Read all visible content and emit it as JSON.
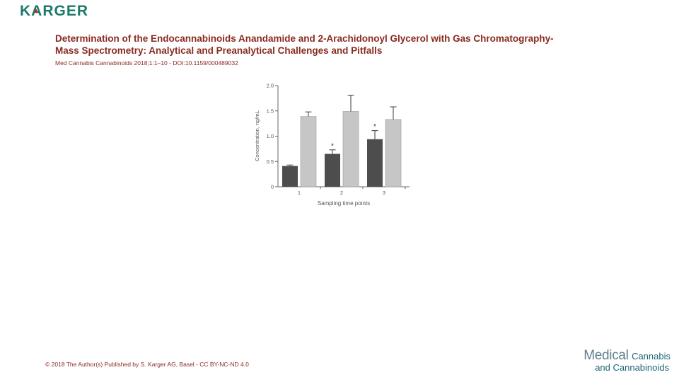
{
  "header": {
    "logo_text": "KARGER"
  },
  "title": {
    "line1": "Determination of the Endocannabinoids Anandamide and 2-Arachidonoyl Glycerol with Gas Chromatography-",
    "line2": "Mass Spectrometry: Analytical and Preanalytical Challenges and Pitfalls"
  },
  "citation": "Med Cannabis Cannabinoids 2018;1:1–10 - DOI:10.1159/000489032",
  "footer": {
    "copyright": "© 2018 The Author(s) Published by S. Karger AG, Basel - CC BY-NC-ND 4.0"
  },
  "journal_logo": {
    "word1": "Medical",
    "word2": "Cannabis",
    "line2": "and Cannabinoids",
    "color_word1": "#5e808d",
    "color_word2": "#1e6577"
  },
  "chart_data": {
    "type": "bar",
    "categories": [
      "1",
      "2",
      "3"
    ],
    "series": [
      {
        "name": "dark-bars",
        "values": [
          0.41,
          0.65,
          0.94
        ],
        "errors": [
          0.02,
          0.08,
          0.17
        ],
        "annotations": [
          "",
          "*",
          "*"
        ],
        "color": "#4d4d4d"
      },
      {
        "name": "light-bars",
        "values": [
          1.39,
          1.49,
          1.33
        ],
        "errors": [
          0.09,
          0.32,
          0.25
        ],
        "annotations": [
          "",
          "",
          ""
        ],
        "color": "#c6c6c6"
      }
    ],
    "title": "",
    "xlabel": "Sampling time points",
    "ylabel": "Concentration, ng/mL",
    "ylim": [
      0,
      2.0
    ],
    "yticks": [
      0,
      0.5,
      1.0,
      1.5,
      2.0
    ],
    "grid": false,
    "legend": "none",
    "axis_color": "#666666",
    "text_color": "#555555"
  }
}
